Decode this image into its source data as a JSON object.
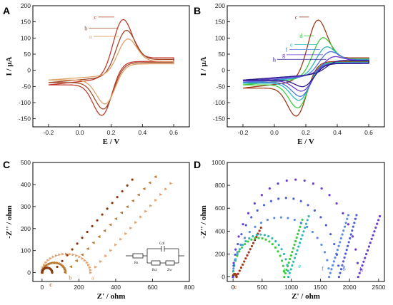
{
  "panels": {
    "A": "A",
    "B": "B",
    "C": "C",
    "D": "D"
  },
  "circuit": {
    "rs": "Rs",
    "cdl": "Cdl",
    "rct": "Rct",
    "zw": "Zw"
  },
  "chart_data": [
    {
      "id": "A",
      "type": "line",
      "xlabel": "E / V",
      "ylabel": "I / μA",
      "xlim": [
        -0.3,
        0.7
      ],
      "ylim": [
        -175,
        200
      ],
      "xticks": [
        -0.2,
        0.0,
        0.2,
        0.4,
        0.6
      ],
      "yticks": [
        -150,
        -100,
        -50,
        0,
        50,
        100,
        150,
        200
      ],
      "grid": false,
      "series": [
        {
          "name": "c",
          "color": "#c0392b",
          "anodic_peak": [
            0.27,
            165
          ],
          "cathodic_peak": [
            0.15,
            -137
          ],
          "start_value": -45,
          "end_value": 55
        },
        {
          "name": "b",
          "color": "#a04a2c",
          "anodic_peak": [
            0.29,
            130
          ],
          "cathodic_peak": [
            0.16,
            -118
          ],
          "start_value": -38,
          "end_value": 48
        },
        {
          "name": "a",
          "color": "#e0a36a",
          "anodic_peak": [
            0.3,
            102
          ],
          "cathodic_peak": [
            0.17,
            -103
          ],
          "start_value": -30,
          "end_value": 40
        }
      ],
      "annotations": [
        {
          "text": "c",
          "at": [
            0.09,
            165
          ]
        },
        {
          "text": "b",
          "at": [
            0.03,
            130
          ]
        },
        {
          "text": "a",
          "at": [
            0.06,
            105
          ]
        }
      ]
    },
    {
      "id": "B",
      "type": "line",
      "xlabel": "E / V",
      "ylabel": "I / μA",
      "xlim": [
        -0.3,
        0.7
      ],
      "ylim": [
        -175,
        200
      ],
      "xticks": [
        -0.2,
        0.0,
        0.2,
        0.4,
        0.6
      ],
      "yticks": [
        -150,
        -100,
        -50,
        0,
        50,
        100,
        150,
        200
      ],
      "grid": false,
      "series": [
        {
          "name": "c",
          "color": "#a0391b",
          "anodic_peak": [
            0.27,
            165
          ],
          "cathodic_peak": [
            0.15,
            -137
          ],
          "start_value": -55,
          "end_value": 55
        },
        {
          "name": "d",
          "color": "#3ecb3e",
          "anodic_peak": [
            0.3,
            108
          ],
          "cathodic_peak": [
            0.16,
            -113
          ],
          "start_value": -45,
          "end_value": 50
        },
        {
          "name": "e",
          "color": "#30b8b8",
          "anodic_peak": [
            0.32,
            78
          ],
          "cathodic_peak": [
            0.17,
            -90
          ],
          "start_value": -40,
          "end_value": 48
        },
        {
          "name": "f",
          "color": "#4a78d8",
          "anodic_peak": [
            0.34,
            62
          ],
          "cathodic_peak": [
            0.18,
            -78
          ],
          "start_value": -37,
          "end_value": 46
        },
        {
          "name": "g",
          "color": "#6a3cd0",
          "anodic_peak": [
            0.36,
            45
          ],
          "cathodic_peak": [
            0.19,
            -62
          ],
          "start_value": -33,
          "end_value": 44
        },
        {
          "name": "h",
          "color": "#2a1c8a",
          "anodic_peak": [
            0.38,
            30
          ],
          "cathodic_peak": [
            0.2,
            -48
          ],
          "start_value": -30,
          "end_value": 42
        }
      ],
      "annotations": [
        {
          "text": "c",
          "at": [
            0.13,
            165
          ]
        },
        {
          "text": "d",
          "at": [
            0.16,
            107
          ]
        },
        {
          "text": "e",
          "at": [
            0.1,
            80
          ]
        },
        {
          "text": "f",
          "at": [
            0.07,
            64
          ]
        },
        {
          "text": "g",
          "at": [
            0.05,
            48
          ]
        },
        {
          "text": "h",
          "at": [
            -0.01,
            34
          ]
        }
      ]
    },
    {
      "id": "C",
      "type": "scatter",
      "xlabel": "Z' / ohm",
      "ylabel": "-Z'' / ohm",
      "xlim": [
        -50,
        800
      ],
      "ylim": [
        -40,
        500
      ],
      "xticks": [
        0,
        200,
        400,
        600,
        800
      ],
      "yticks": [
        0,
        100,
        200,
        300,
        400,
        500
      ],
      "grid": false,
      "series": [
        {
          "name": "a",
          "color": "#e3a06a",
          "marker": "triangle-right",
          "semicircle_end": 265,
          "semicircle_height": 85,
          "tail_end": [
            700,
            405
          ]
        },
        {
          "name": "b",
          "color": "#b9772e",
          "marker": "triangle-left",
          "semicircle_end": 125,
          "semicircle_height": 45,
          "tail_end": [
            615,
            435
          ]
        },
        {
          "name": "c",
          "color": "#8a3a10",
          "marker": "circle",
          "semicircle_end": 55,
          "semicircle_height": 22,
          "tail_end": [
            490,
            422
          ]
        }
      ],
      "annotations": [
        {
          "text": "a",
          "at": [
            268,
            0
          ]
        },
        {
          "text": "b",
          "at": [
            145,
            0
          ]
        },
        {
          "text": "c",
          "at": [
            40,
            -30
          ]
        }
      ]
    },
    {
      "id": "D",
      "type": "scatter",
      "xlabel": "Z' / ohm",
      "ylabel": "-Z'' / ohm",
      "xlim": [
        -100,
        2600
      ],
      "ylim": [
        -40,
        1000
      ],
      "xticks": [
        0,
        500,
        1000,
        1500,
        2000,
        2500
      ],
      "yticks": [
        0,
        200,
        400,
        600,
        800,
        1000
      ],
      "grid": false,
      "series": [
        {
          "name": "c",
          "color": "#a0391b",
          "marker": "circle",
          "semicircle_end": 60,
          "semicircle_height": 25,
          "tail_end": [
            480,
            430
          ]
        },
        {
          "name": "d",
          "color": "#3ecb3e",
          "marker": "circle",
          "semicircle_end": 880,
          "semicircle_height": 340,
          "tail_end": [
            1190,
            500
          ]
        },
        {
          "name": "e",
          "color": "#30b8b8",
          "marker": "circle",
          "semicircle_end": 950,
          "semicircle_height": 370,
          "tail_end": [
            1300,
            530
          ]
        },
        {
          "name": "f",
          "color": "#5a8ee0",
          "marker": "circle",
          "semicircle_end": 1650,
          "semicircle_height": 520,
          "tail_end": [
            1980,
            540
          ]
        },
        {
          "name": "g",
          "color": "#4e5ed6",
          "marker": "circle",
          "semicircle_end": 1820,
          "semicircle_height": 690,
          "tail_end": [
            2120,
            540
          ]
        },
        {
          "name": "h",
          "color": "#6a3cd0",
          "marker": "circle",
          "semicircle_end": 2150,
          "semicircle_height": 850,
          "tail_end": [
            2520,
            530
          ]
        }
      ],
      "annotations": [
        {
          "text": "c",
          "at": [
            20,
            -40
          ]
        },
        {
          "text": "d",
          "at": [
            850,
            100
          ]
        },
        {
          "text": "e",
          "at": [
            1120,
            140
          ]
        },
        {
          "text": "f",
          "at": [
            1520,
            120
          ]
        },
        {
          "text": "g",
          "at": [
            1880,
            130
          ]
        },
        {
          "text": "h",
          "at": [
            2180,
            110
          ]
        }
      ]
    }
  ]
}
